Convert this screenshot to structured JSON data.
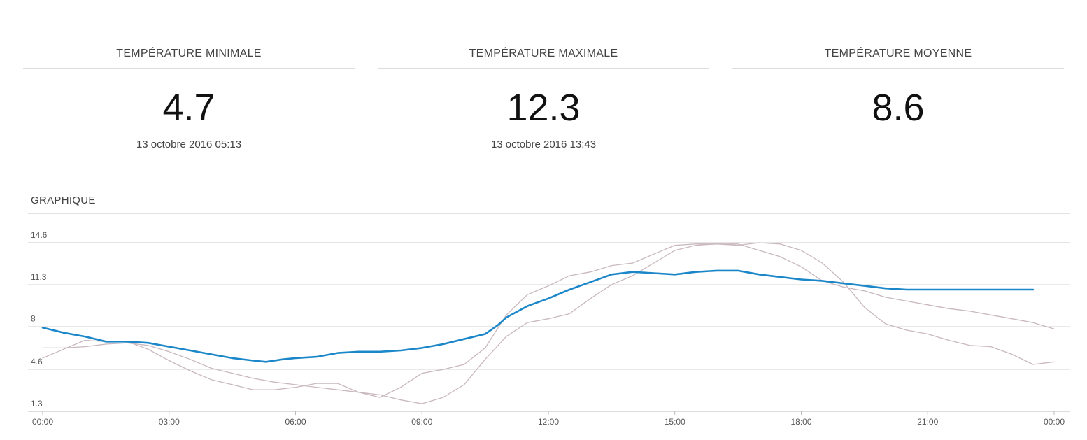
{
  "stats": {
    "min": {
      "label": "TEMPÉRATURE MINIMALE",
      "value": "4.7",
      "date": "13 octobre 2016 05:13"
    },
    "max": {
      "label": "TEMPÉRATURE MAXIMALE",
      "value": "12.3",
      "date": "13 octobre 2016 13:43"
    },
    "avg": {
      "label": "TEMPÉRATURE MOYENNE",
      "value": "8.6",
      "date": ""
    }
  },
  "chart_title": "GRAPHIQUE",
  "chart_data": {
    "type": "line",
    "title": "GRAPHIQUE",
    "xlabel": "",
    "ylabel": "",
    "xlim": [
      0,
      24
    ],
    "ylim": [
      1.3,
      14.6
    ],
    "x_ticks": [
      0,
      3,
      6,
      9,
      12,
      15,
      18,
      21,
      24
    ],
    "x_tick_labels": [
      "00:00",
      "03:00",
      "06:00",
      "09:00",
      "12:00",
      "15:00",
      "18:00",
      "21:00",
      "00:00"
    ],
    "y_ticks": [
      1.3,
      4.6,
      8,
      11.3,
      14.6
    ],
    "y_tick_labels": [
      "1.3",
      "4.6",
      "8",
      "11.3",
      "14.6"
    ],
    "grid": true,
    "legend": "none",
    "series": [
      {
        "color": "#1b87c9",
        "x": [
          0,
          0.5,
          1,
          1.5,
          2,
          2.5,
          3,
          3.5,
          4,
          4.5,
          5,
          5.3,
          5.7,
          6,
          6.5,
          7,
          7.5,
          8,
          8.5,
          9,
          9.5,
          10,
          10.5,
          10.8,
          11,
          11.5,
          12,
          12.5,
          13,
          13.5,
          14,
          14.5,
          15,
          15.5,
          16,
          16.5,
          17,
          17.5,
          18,
          18.5,
          19,
          19.5,
          20,
          20.5,
          21,
          21.5,
          22,
          22.5,
          23,
          23.5
        ],
        "y": [
          7.9,
          7.5,
          7.2,
          6.8,
          6.8,
          6.7,
          6.4,
          6.1,
          5.8,
          5.5,
          5.3,
          5.2,
          5.4,
          5.5,
          5.6,
          5.9,
          6.0,
          6.0,
          6.1,
          6.3,
          6.6,
          7.0,
          7.4,
          8.1,
          8.7,
          9.6,
          10.2,
          10.9,
          11.5,
          12.1,
          12.3,
          12.2,
          12.1,
          12.3,
          12.4,
          12.4,
          12.1,
          11.9,
          11.7,
          11.6,
          11.4,
          11.2,
          11.0,
          10.9,
          10.9,
          10.9,
          10.9,
          10.9,
          10.9,
          10.9
        ]
      },
      {
        "color": "#c9b8be",
        "x": [
          0,
          0.5,
          1,
          1.5,
          2,
          2.5,
          3,
          3.5,
          4,
          4.5,
          5,
          5.5,
          6,
          6.5,
          7,
          7.5,
          8,
          8.5,
          9,
          9.5,
          10,
          10.5,
          11,
          11.5,
          12,
          12.5,
          13,
          13.5,
          14,
          14.5,
          15,
          15.5,
          16,
          16.5,
          17,
          17.5,
          18,
          18.5,
          19,
          19.5,
          20,
          20.5,
          21,
          21.5,
          22,
          22.5,
          23,
          23.5,
          24
        ],
        "y": [
          6.3,
          6.3,
          6.4,
          6.6,
          6.7,
          6.5,
          6.0,
          5.4,
          4.7,
          4.3,
          3.9,
          3.6,
          3.4,
          3.2,
          3.0,
          2.8,
          2.6,
          2.2,
          1.9,
          2.4,
          3.4,
          5.4,
          7.2,
          8.3,
          8.6,
          9.0,
          10.2,
          11.3,
          12.0,
          13.0,
          14.0,
          14.4,
          14.5,
          14.4,
          14.6,
          14.5,
          14.0,
          13.0,
          11.5,
          9.5,
          8.2,
          7.7,
          7.4,
          6.9,
          6.5,
          6.4,
          5.8,
          5.0,
          5.2
        ]
      },
      {
        "color": "#c9b8be",
        "x": [
          0,
          0.5,
          1,
          1.5,
          2,
          2.5,
          3,
          3.5,
          4,
          4.5,
          5,
          5.5,
          6,
          6.5,
          7,
          7.5,
          8,
          8.5,
          9,
          9.5,
          10,
          10.5,
          11,
          11.5,
          12,
          12.5,
          13,
          13.5,
          14,
          14.5,
          15,
          15.5,
          16,
          16.5,
          17,
          17.5,
          18,
          18.5,
          19,
          19.5,
          20,
          20.5,
          21,
          21.5,
          22,
          22.5,
          23,
          23.5,
          24
        ],
        "y": [
          5.5,
          6.2,
          6.9,
          6.8,
          6.8,
          6.2,
          5.3,
          4.5,
          3.8,
          3.4,
          3.0,
          3.0,
          3.2,
          3.5,
          3.5,
          2.8,
          2.4,
          3.2,
          4.3,
          4.6,
          5.0,
          6.3,
          8.9,
          10.5,
          11.2,
          12.0,
          12.3,
          12.8,
          13.0,
          13.7,
          14.4,
          14.5,
          14.5,
          14.5,
          14.0,
          13.5,
          12.7,
          11.6,
          11.1,
          10.8,
          10.3,
          10.0,
          9.7,
          9.4,
          9.2,
          8.9,
          8.6,
          8.3,
          7.8
        ]
      }
    ]
  }
}
